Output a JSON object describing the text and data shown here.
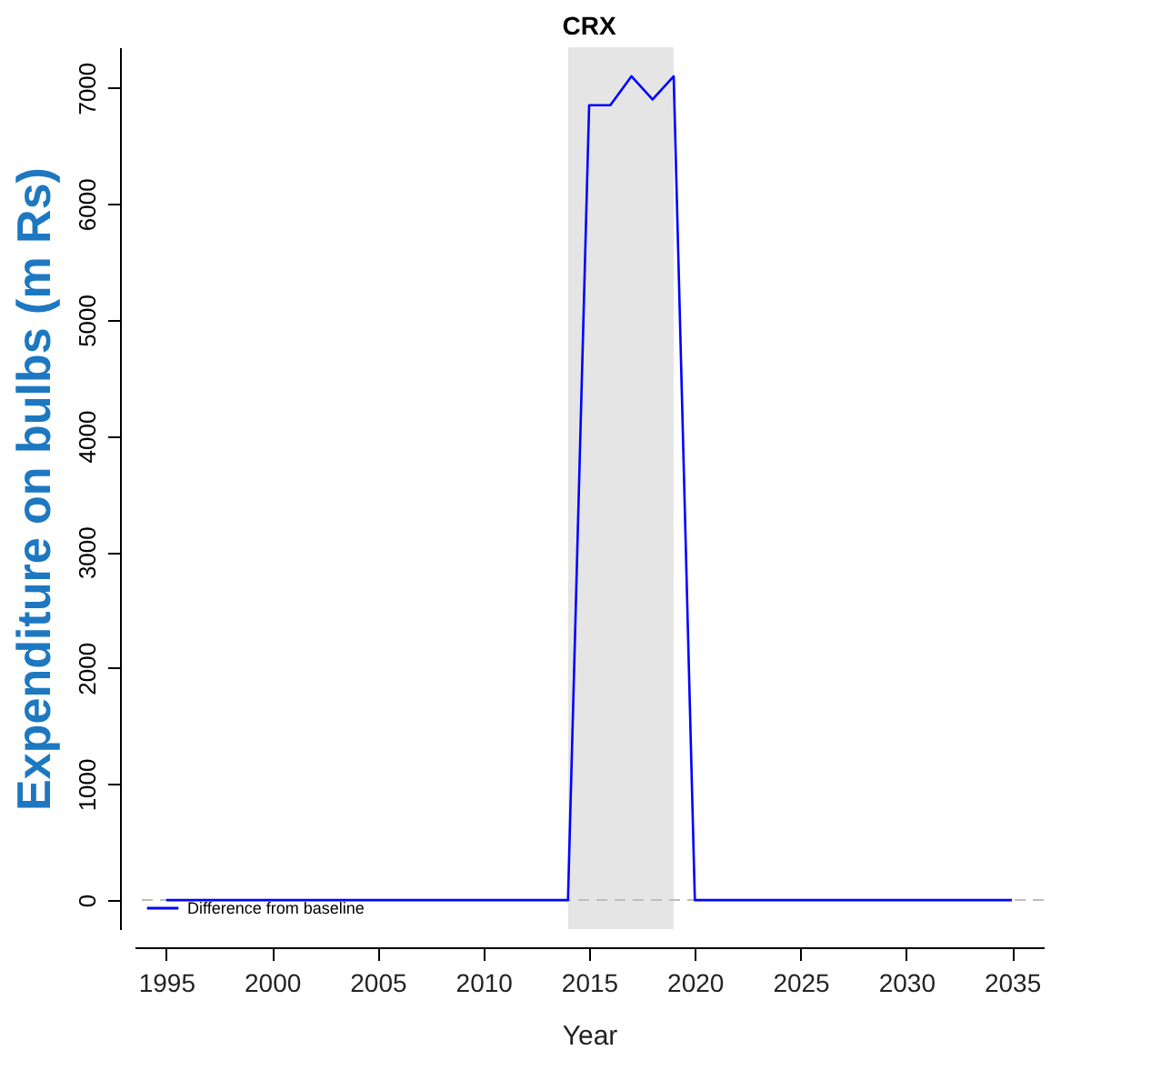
{
  "chart_data": {
    "type": "line",
    "title": "CRX",
    "xlabel": "Year",
    "ylabel": "Expenditure on bulbs (m Rs)",
    "x": [
      1995,
      1996,
      1997,
      1998,
      1999,
      2000,
      2001,
      2002,
      2003,
      2004,
      2005,
      2006,
      2007,
      2008,
      2009,
      2010,
      2011,
      2012,
      2013,
      2014,
      2015,
      2016,
      2017,
      2018,
      2019,
      2020,
      2021,
      2022,
      2023,
      2024,
      2025,
      2026,
      2027,
      2028,
      2029,
      2030,
      2031,
      2032,
      2033,
      2034,
      2035
    ],
    "series": [
      {
        "name": "Difference from baseline",
        "color": "#0000ff",
        "values": [
          0,
          0,
          0,
          0,
          0,
          0,
          0,
          0,
          0,
          0,
          0,
          0,
          0,
          0,
          0,
          0,
          0,
          0,
          0,
          0,
          6850,
          6850,
          7100,
          6900,
          7100,
          0,
          0,
          0,
          0,
          0,
          0,
          0,
          0,
          0,
          0,
          0,
          0,
          0,
          0,
          0,
          0
        ]
      }
    ],
    "xlim": [
      1993.5,
      2036.5
    ],
    "xticks": [
      1995,
      2000,
      2005,
      2010,
      2015,
      2020,
      2025,
      2030,
      2035
    ],
    "ylim": [
      -250,
      7350
    ],
    "yticks": [
      0,
      1000,
      2000,
      3000,
      4000,
      5000,
      6000,
      7000
    ],
    "bands": [
      {
        "axis": "x",
        "from": 2014,
        "to": 2019,
        "color": "#e5e5e5"
      }
    ],
    "ref_lines": [
      {
        "axis": "y",
        "value": 0,
        "color": "#bebebe",
        "line_style": "dashed"
      }
    ],
    "legend": "bottom left",
    "marker": "none",
    "line_style": "solid",
    "grid": false
  }
}
